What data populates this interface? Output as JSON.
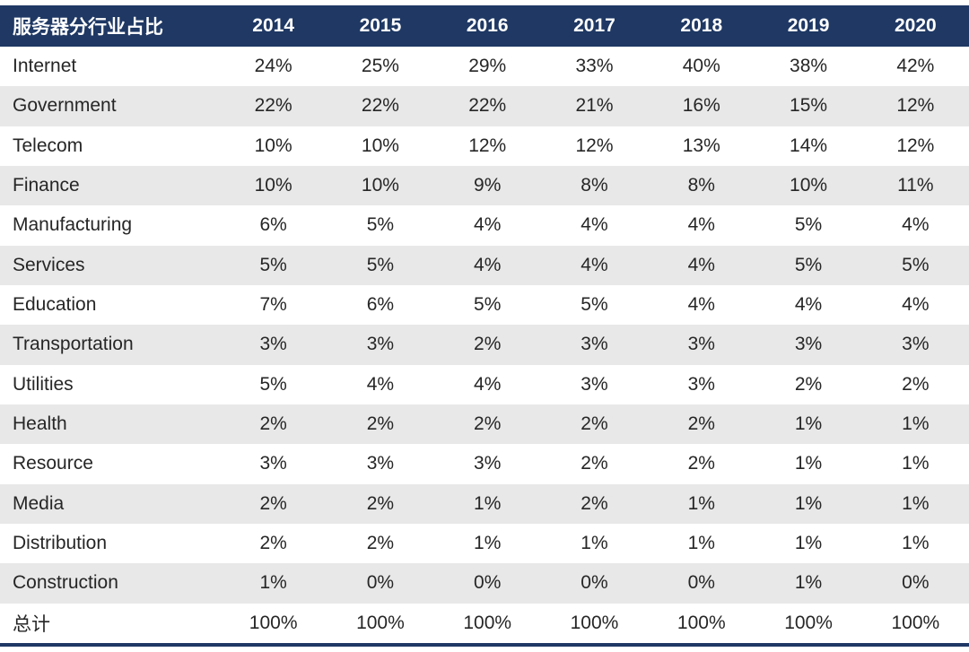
{
  "chart_data": {
    "type": "table",
    "title": "服务器分行业占比",
    "columns": [
      "2014",
      "2015",
      "2016",
      "2017",
      "2018",
      "2019",
      "2020"
    ],
    "rows": [
      {
        "label": "Internet",
        "values": [
          "24%",
          "25%",
          "29%",
          "33%",
          "40%",
          "38%",
          "42%"
        ]
      },
      {
        "label": "Government",
        "values": [
          "22%",
          "22%",
          "22%",
          "21%",
          "16%",
          "15%",
          "12%"
        ]
      },
      {
        "label": "Telecom",
        "values": [
          "10%",
          "10%",
          "12%",
          "12%",
          "13%",
          "14%",
          "12%"
        ]
      },
      {
        "label": "Finance",
        "values": [
          "10%",
          "10%",
          "9%",
          "8%",
          "8%",
          "10%",
          "11%"
        ]
      },
      {
        "label": "Manufacturing",
        "values": [
          "6%",
          "5%",
          "4%",
          "4%",
          "4%",
          "5%",
          "4%"
        ]
      },
      {
        "label": "Services",
        "values": [
          "5%",
          "5%",
          "4%",
          "4%",
          "4%",
          "5%",
          "5%"
        ]
      },
      {
        "label": "Education",
        "values": [
          "7%",
          "6%",
          "5%",
          "5%",
          "4%",
          "4%",
          "4%"
        ]
      },
      {
        "label": "Transportation",
        "values": [
          "3%",
          "3%",
          "2%",
          "3%",
          "3%",
          "3%",
          "3%"
        ]
      },
      {
        "label": "Utilities",
        "values": [
          "5%",
          "4%",
          "4%",
          "3%",
          "3%",
          "2%",
          "2%"
        ]
      },
      {
        "label": "Health",
        "values": [
          "2%",
          "2%",
          "2%",
          "2%",
          "2%",
          "1%",
          "1%"
        ]
      },
      {
        "label": "Resource",
        "values": [
          "3%",
          "3%",
          "3%",
          "2%",
          "2%",
          "1%",
          "1%"
        ]
      },
      {
        "label": "Media",
        "values": [
          "2%",
          "2%",
          "1%",
          "2%",
          "1%",
          "1%",
          "1%"
        ]
      },
      {
        "label": "Distribution",
        "values": [
          "2%",
          "2%",
          "1%",
          "1%",
          "1%",
          "1%",
          "1%"
        ]
      },
      {
        "label": "Construction",
        "values": [
          "1%",
          "0%",
          "0%",
          "0%",
          "0%",
          "1%",
          "0%"
        ]
      },
      {
        "label": "总计",
        "values": [
          "100%",
          "100%",
          "100%",
          "100%",
          "100%",
          "100%",
          "100%"
        ]
      }
    ]
  },
  "colors": {
    "header_bg": "#1F3864",
    "header_text": "#FFFFFF",
    "row_alt_bg": "#E8E8E8",
    "text": "#262626"
  }
}
